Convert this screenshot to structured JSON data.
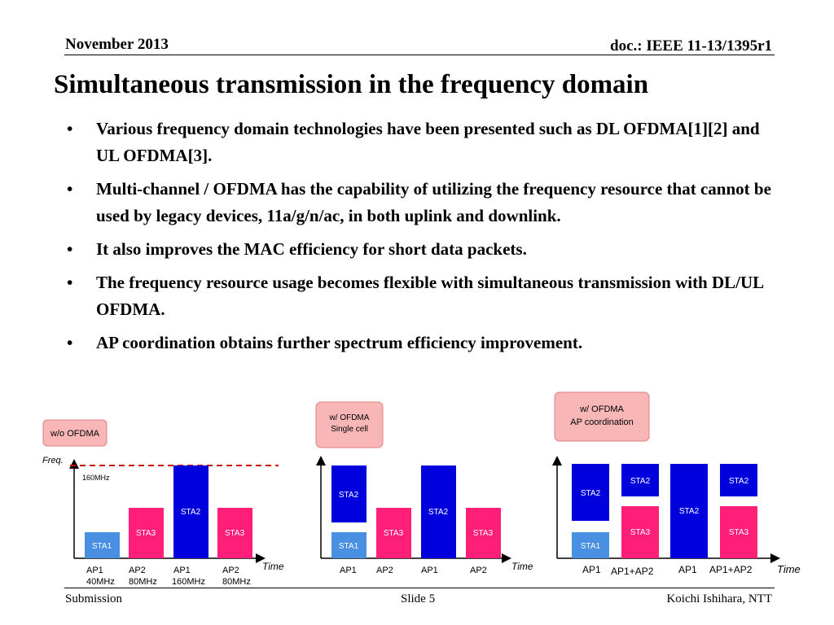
{
  "header": {
    "date": "November 2013",
    "doc": "doc.: IEEE 11-13/1395r1"
  },
  "title": "Simultaneous transmission in the frequency domain",
  "bullets": [
    "Various frequency domain technologies have been presented such as DL OFDMA[1][2] and UL OFDMA[3].",
    "Multi-channel / OFDMA has the capability of utilizing the frequency resource that cannot be used by legacy devices, 11a/g/n/ac, in both uplink and downlink.",
    "It also improves the MAC efficiency for short data packets.",
    "The frequency resource usage becomes flexible with simultaneous transmission with DL/UL OFDMA.",
    "AP coordination obtains further spectrum efficiency improvement."
  ],
  "bullet_symbol": "•",
  "diagrams": {
    "colors": {
      "sta1": "#4a90e2",
      "sta2": "#0000dd",
      "sta3": "#ff1f78",
      "label_box": "#f8b6b6",
      "dash": "#cc0000"
    },
    "d1": {
      "label": "w/o OFDMA",
      "y_axis": "Freq.",
      "bandwidth": "160MHz",
      "time_label": "Time",
      "bars": [
        "STA1",
        "STA3",
        "STA2",
        "STA3"
      ],
      "x_labels": [
        [
          "AP1",
          "40MHz"
        ],
        [
          "AP2",
          "80MHz"
        ],
        [
          "AP1",
          "160MHz"
        ],
        [
          "AP2",
          "80MHz"
        ]
      ]
    },
    "d2": {
      "label": [
        "w/ OFDMA",
        "Single cell"
      ],
      "time_label": "Time",
      "bars": [
        "STA1",
        "STA2",
        "STA3",
        "STA2",
        "STA3"
      ],
      "x_labels": [
        "AP1",
        "AP2",
        "AP1",
        "AP2"
      ]
    },
    "d3": {
      "label": [
        "w/ OFDMA",
        "AP coordination"
      ],
      "time_label": "Time",
      "bars": [
        "STA1",
        "STA2",
        "STA2",
        "STA3",
        "STA2",
        "STA2",
        "STA3"
      ],
      "x_labels": [
        "AP1",
        "AP1+AP2",
        "AP1",
        "AP1+AP2"
      ]
    }
  },
  "footer": {
    "left": "Submission",
    "center": "Slide 5",
    "right": "Koichi Ishihara, NTT"
  }
}
